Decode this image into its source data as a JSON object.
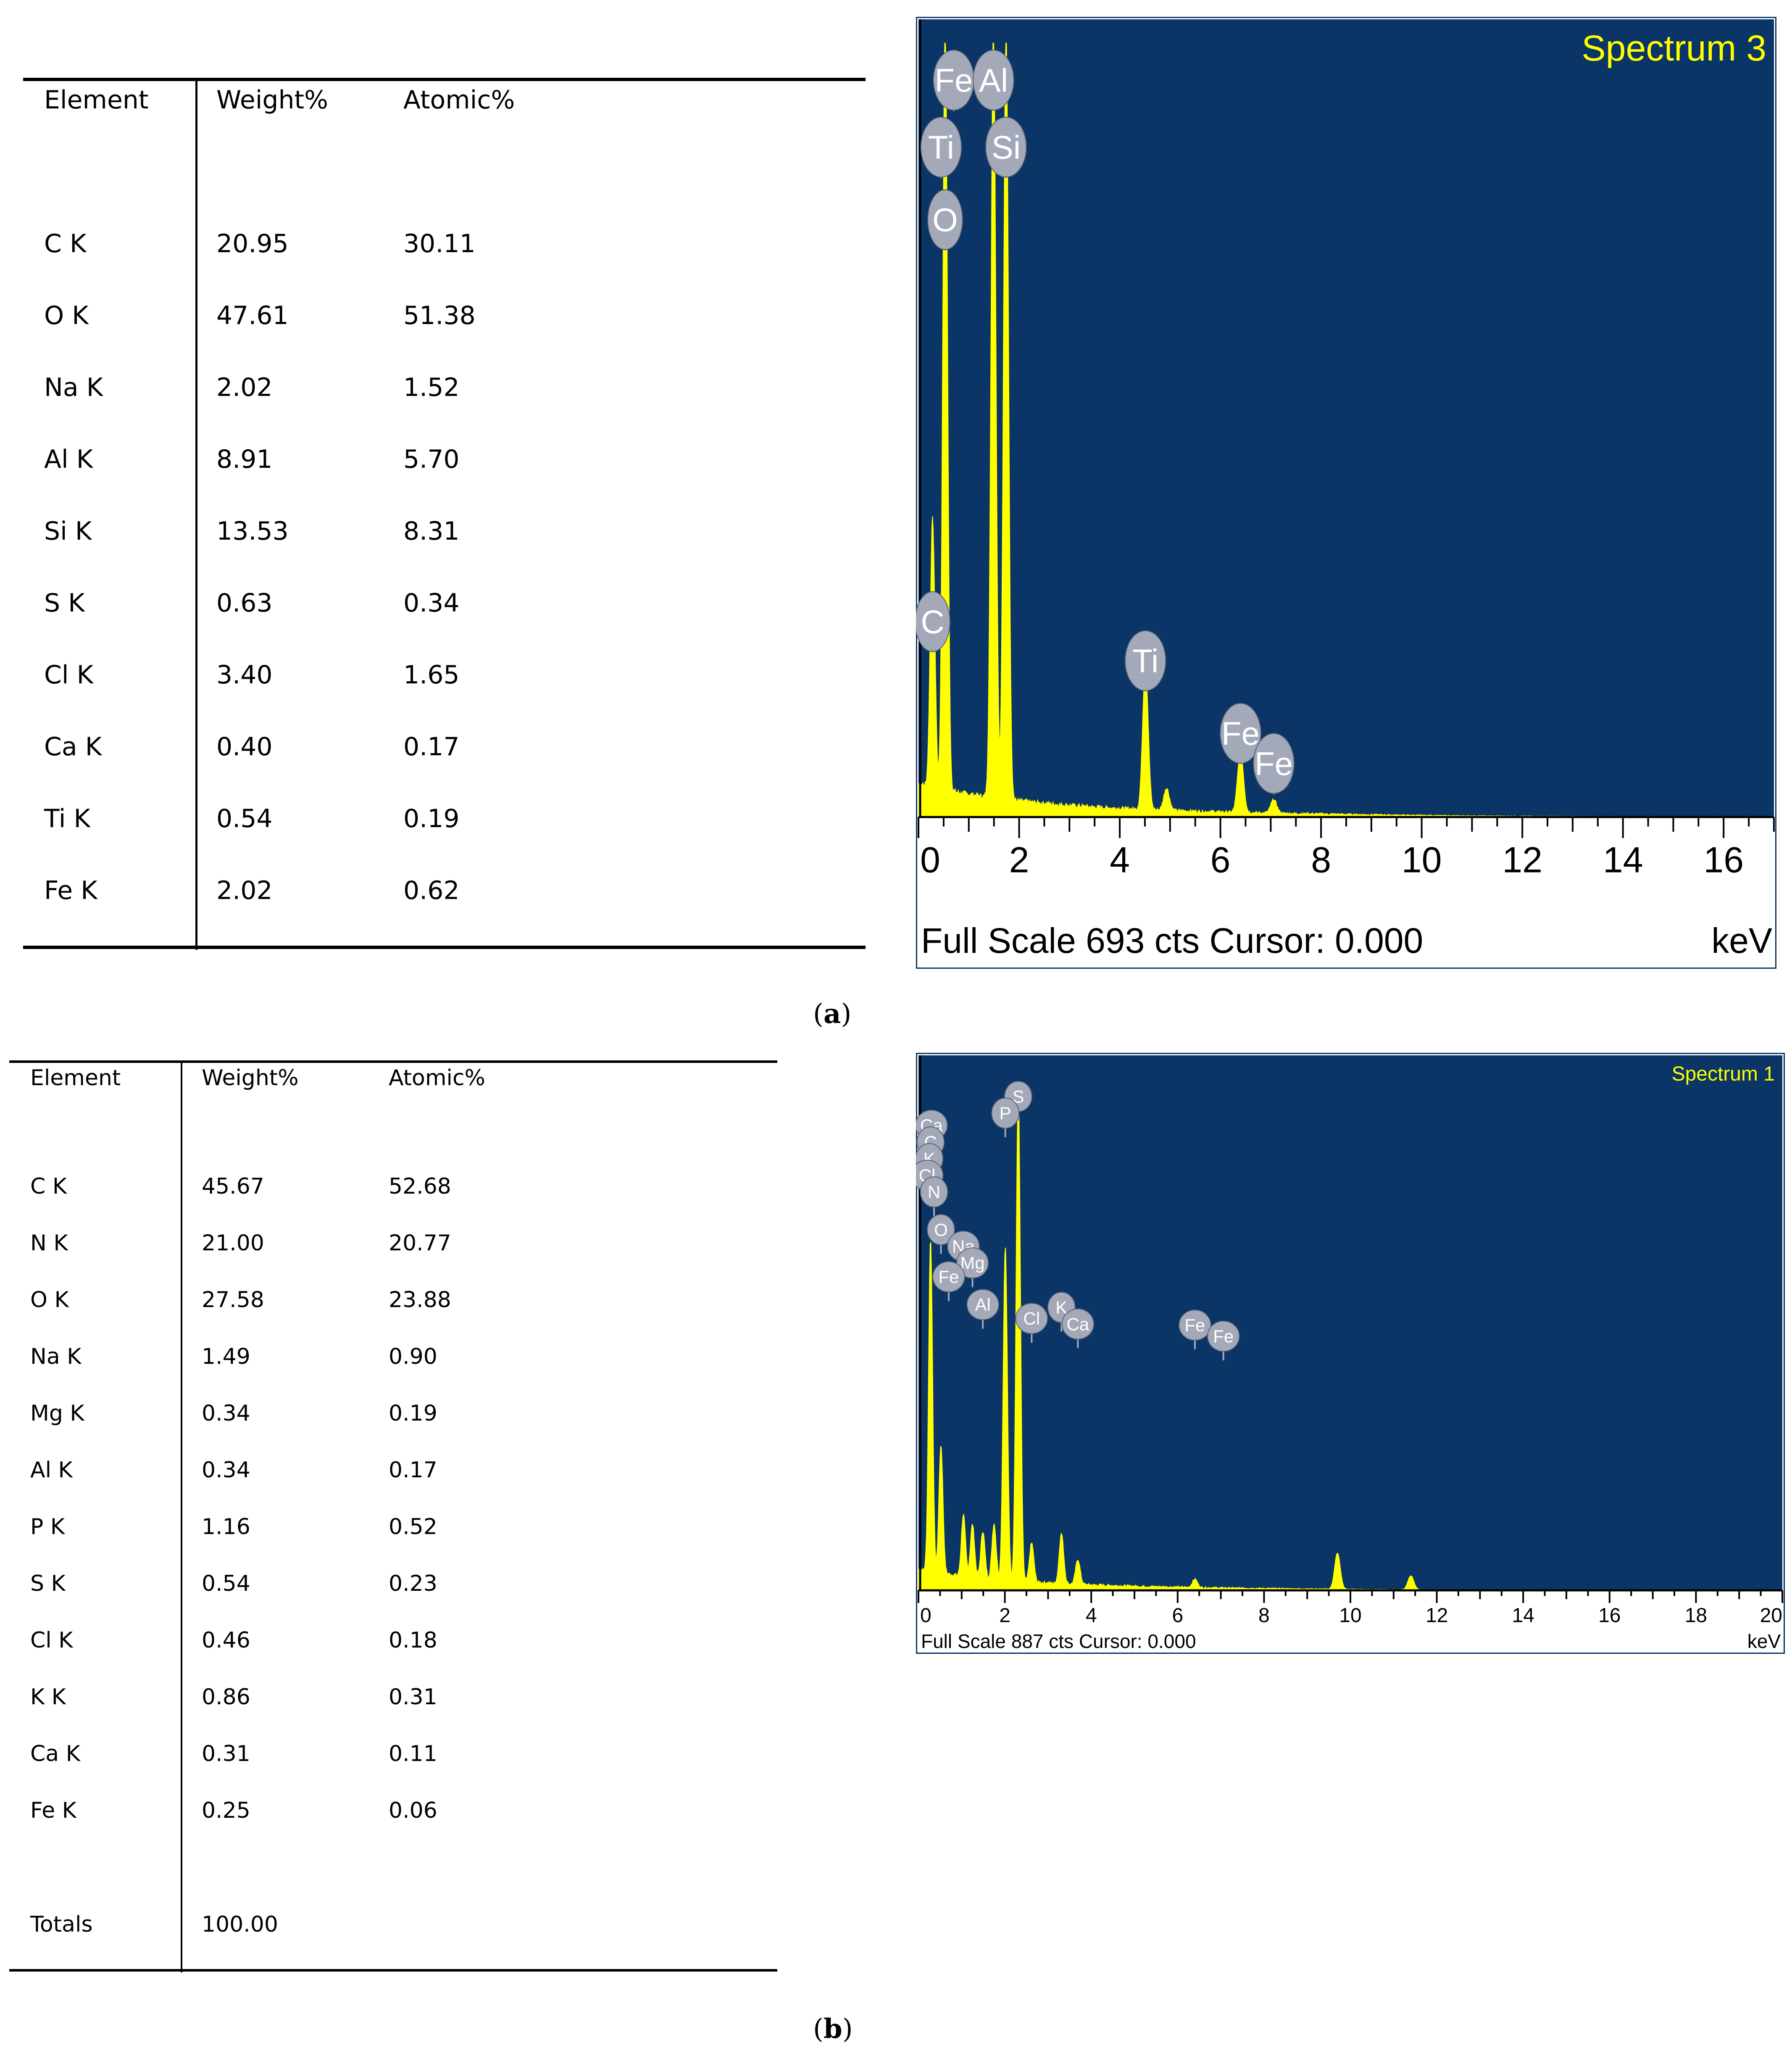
{
  "panel_a": {
    "caption_open": "(",
    "caption_letter": "a",
    "caption_close": ")",
    "table": {
      "headers": [
        "Element",
        "Weight%",
        "Atomic%"
      ],
      "rows": [
        [
          "C K",
          "20.95",
          "30.11"
        ],
        [
          "O K",
          "47.61",
          "51.38"
        ],
        [
          "Na K",
          "2.02",
          "1.52"
        ],
        [
          "Al K",
          "8.91",
          "5.70"
        ],
        [
          "Si K",
          "13.53",
          "8.31"
        ],
        [
          "S K",
          "0.63",
          "0.34"
        ],
        [
          "Cl K",
          "3.40",
          "1.65"
        ],
        [
          "Ca K",
          "0.40",
          "0.17"
        ],
        [
          "Ti K",
          "0.54",
          "0.19"
        ],
        [
          "Fe K",
          "2.02",
          "0.62"
        ]
      ]
    }
  },
  "panel_b": {
    "caption_open": "(",
    "caption_letter": "b",
    "caption_close": ")",
    "table": {
      "headers": [
        "Element",
        "Weight%",
        "Atomic%"
      ],
      "rows": [
        [
          "C K",
          "45.67",
          "52.68"
        ],
        [
          "N K",
          "21.00",
          "20.77"
        ],
        [
          "O K",
          "27.58",
          "23.88"
        ],
        [
          "Na K",
          "1.49",
          "0.90"
        ],
        [
          "Mg K",
          "0.34",
          "0.19"
        ],
        [
          "Al K",
          "0.34",
          "0.17"
        ],
        [
          "P K",
          "1.16",
          "0.52"
        ],
        [
          "S K",
          "0.54",
          "0.23"
        ],
        [
          "Cl K",
          "0.46",
          "0.18"
        ],
        [
          "K K",
          "0.86",
          "0.31"
        ],
        [
          "Ca K",
          "0.31",
          "0.11"
        ],
        [
          "Fe K",
          "0.25",
          "0.06"
        ]
      ],
      "totals_label": "Totals",
      "totals_value": "100.00"
    }
  },
  "colors": {
    "plot_background": "#0a3566",
    "spectrum_line": "#ffff00",
    "label_badge": "#a3a9b8",
    "label_text": "#ffffff",
    "title_text": "#ffff00"
  },
  "chart_data": [
    {
      "type": "line",
      "title": "Spectrum 3",
      "xlabel": "keV",
      "footer": "Full Scale 693 cts Cursor: 0.000",
      "xlim": [
        0,
        17
      ],
      "ylim": [
        0,
        693
      ],
      "xticks": [
        0,
        2,
        4,
        6,
        8,
        10,
        12,
        14,
        16
      ],
      "grid": false,
      "peaks": [
        {
          "x": 0.28,
          "y": 240
        },
        {
          "x": 0.53,
          "y": 693
        },
        {
          "x": 1.49,
          "y": 693
        },
        {
          "x": 1.74,
          "y": 693
        },
        {
          "x": 4.51,
          "y": 130
        },
        {
          "x": 4.93,
          "y": 20
        },
        {
          "x": 6.4,
          "y": 55
        },
        {
          "x": 7.06,
          "y": 12
        }
      ],
      "labels": [
        {
          "text": "Fe",
          "x": 0.7,
          "y": 660
        },
        {
          "text": "Al",
          "x": 1.49,
          "y": 660
        },
        {
          "text": "Ti",
          "x": 0.45,
          "y": 600
        },
        {
          "text": "Si",
          "x": 1.74,
          "y": 600
        },
        {
          "text": "O",
          "x": 0.53,
          "y": 535
        },
        {
          "text": "C",
          "x": 0.28,
          "y": 175
        },
        {
          "text": "Ti",
          "x": 4.51,
          "y": 140
        },
        {
          "text": "Fe",
          "x": 6.4,
          "y": 75
        },
        {
          "text": "Fe",
          "x": 7.06,
          "y": 48
        }
      ]
    },
    {
      "type": "line",
      "title": "Spectrum 1",
      "xlabel": "keV",
      "footer": "Full Scale 887 cts Cursor: 0.000",
      "xlim": [
        0,
        20
      ],
      "ylim": [
        0,
        887
      ],
      "xticks": [
        0,
        2,
        4,
        6,
        8,
        10,
        12,
        14,
        16,
        18,
        20
      ],
      "grid": false,
      "peaks": [
        {
          "x": 0.28,
          "y": 600
        },
        {
          "x": 0.52,
          "y": 230
        },
        {
          "x": 1.04,
          "y": 110
        },
        {
          "x": 1.25,
          "y": 95
        },
        {
          "x": 1.49,
          "y": 85
        },
        {
          "x": 1.75,
          "y": 100
        },
        {
          "x": 2.01,
          "y": 600
        },
        {
          "x": 2.31,
          "y": 887
        },
        {
          "x": 2.62,
          "y": 70
        },
        {
          "x": 3.31,
          "y": 90
        },
        {
          "x": 3.69,
          "y": 45
        },
        {
          "x": 6.4,
          "y": 15
        },
        {
          "x": 9.7,
          "y": 65
        },
        {
          "x": 11.4,
          "y": 25
        }
      ],
      "labels": [
        {
          "text": "S",
          "x": 2.31,
          "y": 890
        },
        {
          "text": "P",
          "x": 2.01,
          "y": 860
        },
        {
          "text": "Ca",
          "x": 0.3,
          "y": 838
        },
        {
          "text": "C",
          "x": 0.28,
          "y": 808
        },
        {
          "text": "K",
          "x": 0.25,
          "y": 778
        },
        {
          "text": "Cl",
          "x": 0.2,
          "y": 748
        },
        {
          "text": "N",
          "x": 0.36,
          "y": 718
        },
        {
          "text": "O",
          "x": 0.52,
          "y": 650
        },
        {
          "text": "Na",
          "x": 1.04,
          "y": 620
        },
        {
          "text": "Mg",
          "x": 1.25,
          "y": 590
        },
        {
          "text": "Fe",
          "x": 0.7,
          "y": 565
        },
        {
          "text": "Al",
          "x": 1.49,
          "y": 515
        },
        {
          "text": "K",
          "x": 3.31,
          "y": 510
        },
        {
          "text": "Cl",
          "x": 2.62,
          "y": 490
        },
        {
          "text": "Ca",
          "x": 3.69,
          "y": 480
        },
        {
          "text": "Fe",
          "x": 6.4,
          "y": 478
        },
        {
          "text": "Fe",
          "x": 7.06,
          "y": 458
        }
      ]
    }
  ]
}
